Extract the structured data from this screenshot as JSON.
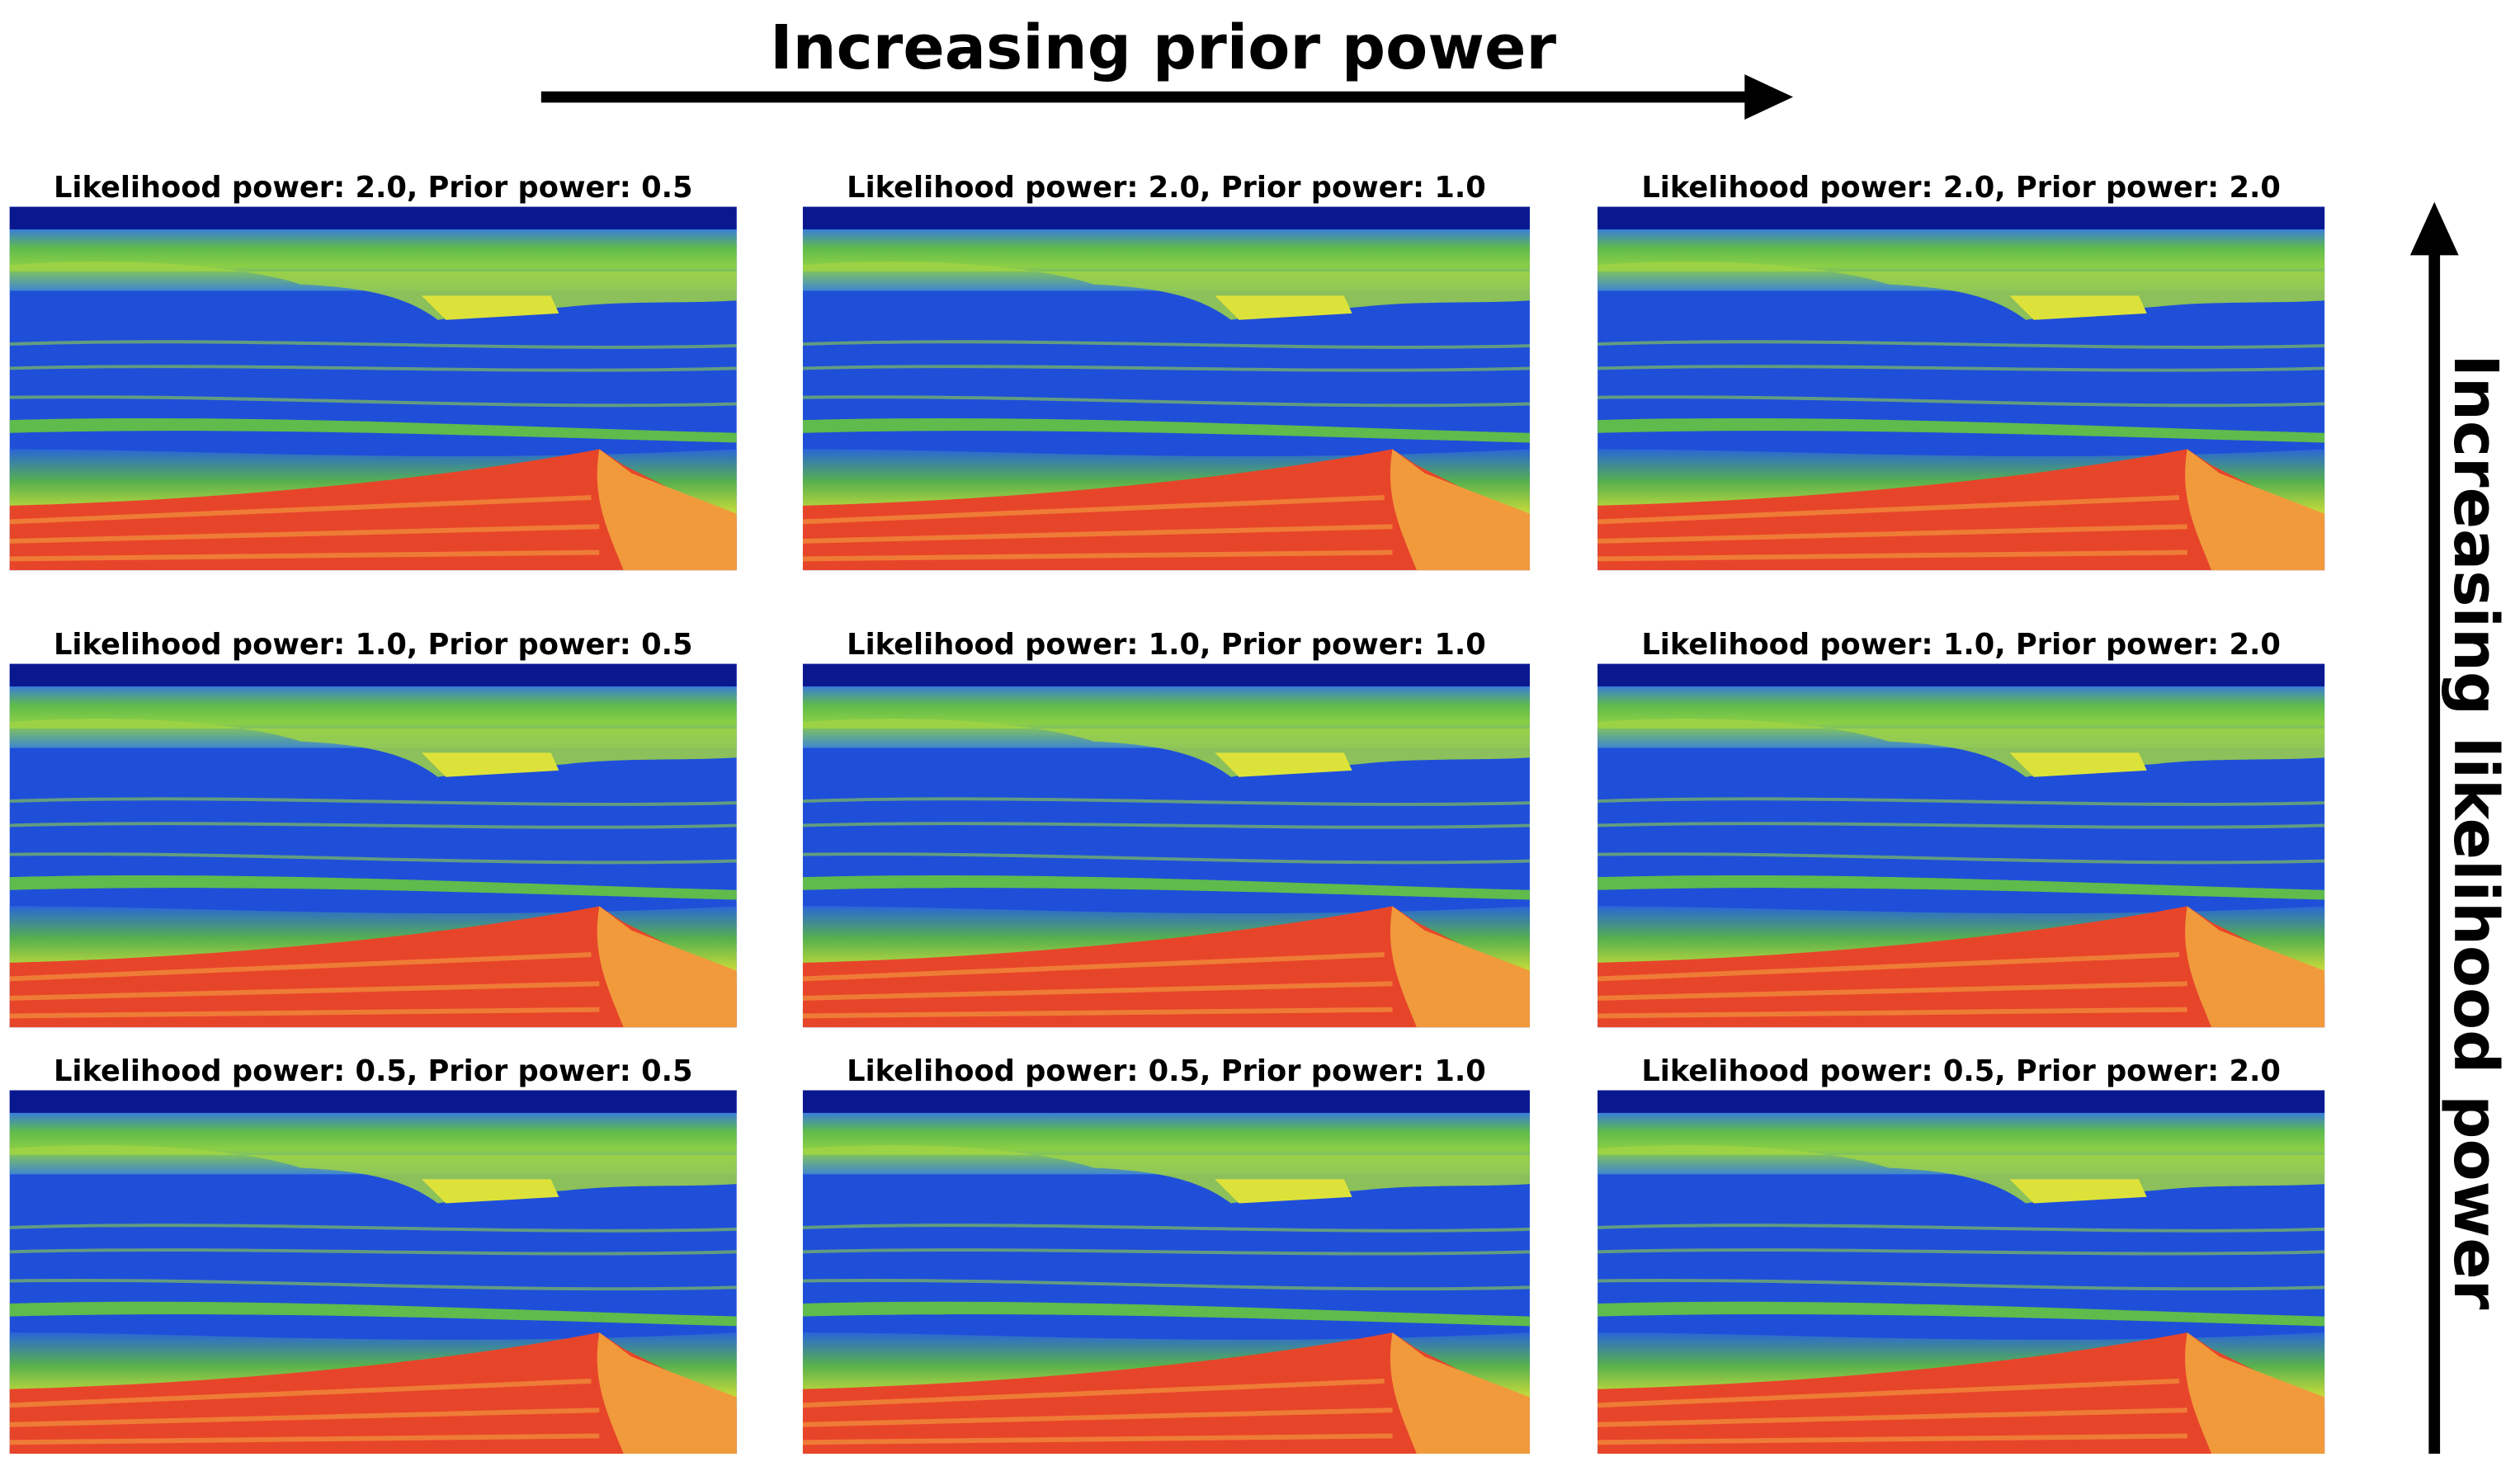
{
  "header": {
    "title": "Increasing prior power"
  },
  "side_label": "Increasing likelihood power",
  "panels": [
    {
      "title": "Likelihood power: 2.0, Prior power: 0.5"
    },
    {
      "title": "Likelihood power: 2.0, Prior power: 1.0"
    },
    {
      "title": "Likelihood power: 2.0, Prior power: 2.0"
    },
    {
      "title": "Likelihood power: 1.0, Prior power: 0.5"
    },
    {
      "title": "Likelihood power: 1.0, Prior power: 1.0"
    },
    {
      "title": "Likelihood power: 1.0, Prior power: 2.0"
    },
    {
      "title": "Likelihood power: 0.5, Prior power: 0.5"
    },
    {
      "title": "Likelihood power: 0.5, Prior power: 1.0"
    },
    {
      "title": "Likelihood power: 0.5, Prior power: 2.0"
    }
  ]
}
